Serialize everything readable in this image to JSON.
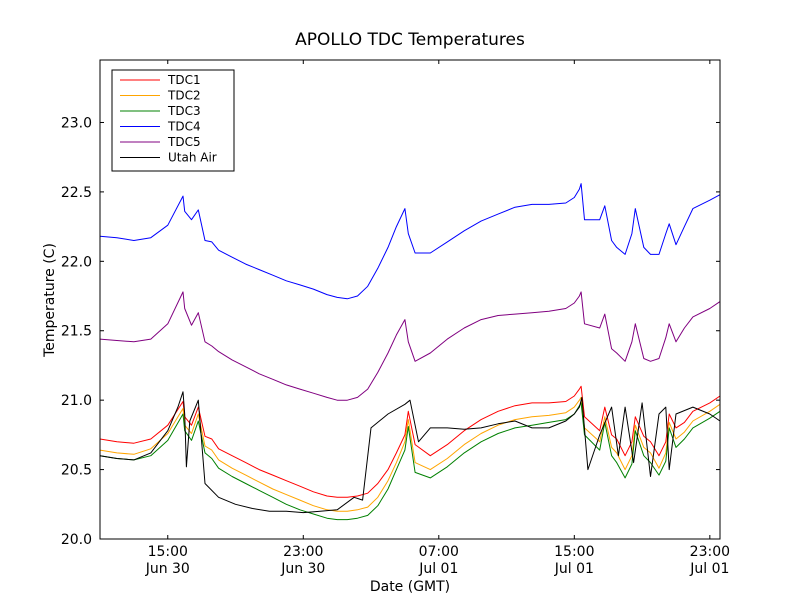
{
  "chart_data": {
    "type": "line",
    "title": "APOLLO TDC Temperatures",
    "xlabel": "Date (GMT)",
    "ylabel": "Temperature (C)",
    "xlim": [
      11.0,
      47.6
    ],
    "ylim": [
      20.0,
      23.45
    ],
    "grid": false,
    "legend_position": "top-left",
    "x_units": "hours since Jun 30 00:00 GMT",
    "x_ticks": [
      {
        "x": 15,
        "line1": "15:00",
        "line2": "Jun 30"
      },
      {
        "x": 23,
        "line1": "23:00",
        "line2": "Jun 30"
      },
      {
        "x": 31,
        "line1": "07:00",
        "line2": "Jul 01"
      },
      {
        "x": 39,
        "line1": "15:00",
        "line2": "Jul 01"
      },
      {
        "x": 47,
        "line1": "23:00",
        "line2": "Jul 01"
      }
    ],
    "y_ticks": [
      {
        "value": 20.0,
        "label": "20.0"
      },
      {
        "value": 20.5,
        "label": "20.5"
      },
      {
        "value": 21.0,
        "label": "21.0"
      },
      {
        "value": 21.5,
        "label": "21.5"
      },
      {
        "value": 22.0,
        "label": "22.0"
      },
      {
        "value": 22.5,
        "label": "22.5"
      },
      {
        "value": 23.0,
        "label": "23.0"
      }
    ],
    "series": [
      {
        "name": "TDC1",
        "color": "#ff0000",
        "x": [
          11.0,
          12.0,
          13.0,
          14.0,
          15.0,
          15.9,
          16.0,
          16.4,
          16.8,
          17.2,
          17.6,
          18.0,
          18.8,
          19.6,
          20.4,
          21.2,
          22.0,
          22.8,
          23.6,
          24.4,
          25.0,
          25.6,
          26.2,
          26.8,
          27.4,
          28.0,
          28.5,
          29.0,
          29.2,
          29.6,
          30.5,
          31.5,
          32.5,
          33.5,
          34.5,
          35.5,
          36.5,
          37.5,
          38.5,
          39.0,
          39.3,
          39.4,
          39.6,
          40.5,
          40.8,
          41.2,
          41.5,
          42.0,
          42.4,
          42.6,
          43.1,
          43.5,
          44.0,
          44.4,
          44.6,
          45.0,
          45.5,
          46.0,
          47.0,
          47.6
        ],
        "y": [
          20.72,
          20.7,
          20.69,
          20.72,
          20.82,
          20.99,
          20.88,
          20.82,
          20.95,
          20.74,
          20.72,
          20.65,
          20.6,
          20.55,
          20.5,
          20.46,
          20.42,
          20.38,
          20.34,
          20.31,
          20.3,
          20.3,
          20.31,
          20.33,
          20.4,
          20.5,
          20.62,
          20.75,
          20.92,
          20.68,
          20.6,
          20.68,
          20.78,
          20.86,
          20.92,
          20.96,
          20.98,
          20.98,
          20.99,
          21.03,
          21.08,
          21.1,
          20.88,
          20.78,
          20.95,
          20.75,
          20.72,
          20.6,
          20.7,
          20.88,
          20.74,
          20.7,
          20.6,
          20.7,
          20.9,
          20.8,
          20.84,
          20.92,
          20.98,
          21.03
        ]
      },
      {
        "name": "TDC2",
        "color": "#ffa500",
        "x": [
          11.0,
          12.0,
          13.0,
          14.0,
          15.0,
          15.9,
          16.0,
          16.4,
          16.8,
          17.2,
          17.6,
          18.0,
          18.8,
          19.6,
          20.4,
          21.2,
          22.0,
          22.8,
          23.6,
          24.4,
          25.0,
          25.6,
          26.2,
          26.8,
          27.4,
          28.0,
          28.5,
          29.0,
          29.2,
          29.6,
          30.5,
          31.5,
          32.5,
          33.5,
          34.5,
          35.5,
          36.5,
          37.5,
          38.5,
          39.0,
          39.3,
          39.4,
          39.6,
          40.5,
          40.8,
          41.2,
          41.5,
          42.0,
          42.4,
          42.6,
          43.1,
          43.5,
          44.0,
          44.4,
          44.6,
          45.0,
          45.5,
          46.0,
          47.0,
          47.6
        ],
        "y": [
          20.64,
          20.62,
          20.61,
          20.65,
          20.76,
          20.94,
          20.82,
          20.76,
          20.9,
          20.67,
          20.64,
          20.57,
          20.51,
          20.46,
          20.41,
          20.36,
          20.32,
          20.28,
          20.24,
          20.21,
          20.2,
          20.2,
          20.21,
          20.23,
          20.3,
          20.42,
          20.55,
          20.7,
          20.86,
          20.55,
          20.5,
          20.58,
          20.68,
          20.76,
          20.82,
          20.86,
          20.88,
          20.89,
          20.91,
          20.95,
          21.0,
          21.02,
          20.8,
          20.7,
          20.88,
          20.66,
          20.62,
          20.5,
          20.6,
          20.82,
          20.66,
          20.62,
          20.51,
          20.62,
          20.84,
          20.72,
          20.77,
          20.85,
          20.92,
          20.97
        ]
      },
      {
        "name": "TDC3",
        "color": "#008000",
        "x": [
          11.0,
          12.0,
          13.0,
          14.0,
          15.0,
          15.9,
          16.0,
          16.4,
          16.8,
          17.2,
          17.6,
          18.0,
          18.8,
          19.6,
          20.4,
          21.2,
          22.0,
          22.8,
          23.6,
          24.4,
          25.0,
          25.6,
          26.2,
          26.8,
          27.4,
          28.0,
          28.5,
          29.0,
          29.2,
          29.6,
          30.5,
          31.5,
          32.5,
          33.5,
          34.5,
          35.5,
          36.5,
          37.5,
          38.5,
          39.0,
          39.3,
          39.4,
          39.6,
          40.5,
          40.8,
          41.2,
          41.5,
          42.0,
          42.4,
          42.6,
          43.1,
          43.5,
          44.0,
          44.4,
          44.6,
          45.0,
          45.5,
          46.0,
          47.0,
          47.6
        ],
        "y": [
          20.6,
          20.58,
          20.57,
          20.6,
          20.71,
          20.9,
          20.78,
          20.71,
          20.85,
          20.62,
          20.58,
          20.51,
          20.45,
          20.4,
          20.35,
          20.3,
          20.25,
          20.21,
          20.18,
          20.15,
          20.14,
          20.14,
          20.15,
          20.17,
          20.24,
          20.36,
          20.5,
          20.64,
          20.81,
          20.48,
          20.44,
          20.52,
          20.62,
          20.7,
          20.76,
          20.8,
          20.82,
          20.84,
          20.86,
          20.9,
          20.96,
          20.98,
          20.75,
          20.64,
          20.84,
          20.6,
          20.55,
          20.44,
          20.54,
          20.78,
          20.6,
          20.55,
          20.46,
          20.56,
          20.8,
          20.66,
          20.72,
          20.8,
          20.87,
          20.92
        ]
      },
      {
        "name": "TDC4",
        "color": "#0000ff",
        "x": [
          11.0,
          12.0,
          13.0,
          14.0,
          15.0,
          15.9,
          16.0,
          16.4,
          16.8,
          17.2,
          17.6,
          18.0,
          18.8,
          19.6,
          20.4,
          21.2,
          22.0,
          22.8,
          23.6,
          24.4,
          25.0,
          25.6,
          26.2,
          26.8,
          27.4,
          28.0,
          28.5,
          29.0,
          29.2,
          29.6,
          30.5,
          31.5,
          32.5,
          33.5,
          34.5,
          35.5,
          36.5,
          37.5,
          38.5,
          39.0,
          39.3,
          39.4,
          39.6,
          40.5,
          40.8,
          41.2,
          41.5,
          42.0,
          42.4,
          42.6,
          43.1,
          43.5,
          44.0,
          44.4,
          44.6,
          45.0,
          45.5,
          46.0,
          47.0,
          47.6
        ],
        "y": [
          22.18,
          22.17,
          22.15,
          22.17,
          22.26,
          22.47,
          22.36,
          22.3,
          22.37,
          22.15,
          22.14,
          22.08,
          22.03,
          21.98,
          21.94,
          21.9,
          21.86,
          21.83,
          21.8,
          21.76,
          21.74,
          21.73,
          21.75,
          21.82,
          21.95,
          22.1,
          22.25,
          22.38,
          22.2,
          22.06,
          22.06,
          22.14,
          22.22,
          22.29,
          22.34,
          22.39,
          22.41,
          22.41,
          22.42,
          22.46,
          22.52,
          22.56,
          22.3,
          22.3,
          22.4,
          22.15,
          22.1,
          22.05,
          22.2,
          22.38,
          22.1,
          22.05,
          22.05,
          22.2,
          22.27,
          22.12,
          22.25,
          22.38,
          22.44,
          22.48
        ]
      },
      {
        "name": "TDC5",
        "color": "#800080",
        "x": [
          11.0,
          12.0,
          13.0,
          14.0,
          15.0,
          15.9,
          16.0,
          16.4,
          16.8,
          17.2,
          17.6,
          18.0,
          18.8,
          19.6,
          20.4,
          21.2,
          22.0,
          22.8,
          23.6,
          24.4,
          25.0,
          25.6,
          26.2,
          26.8,
          27.4,
          28.0,
          28.5,
          29.0,
          29.2,
          29.6,
          30.5,
          31.5,
          32.5,
          33.5,
          34.5,
          35.5,
          36.5,
          37.5,
          38.5,
          39.0,
          39.3,
          39.4,
          39.6,
          40.5,
          40.8,
          41.2,
          41.5,
          42.0,
          42.4,
          42.6,
          43.1,
          43.5,
          44.0,
          44.4,
          44.6,
          45.0,
          45.5,
          46.0,
          47.0,
          47.6
        ],
        "y": [
          21.44,
          21.43,
          21.42,
          21.44,
          21.55,
          21.78,
          21.66,
          21.54,
          21.63,
          21.42,
          21.39,
          21.35,
          21.29,
          21.24,
          21.19,
          21.15,
          21.11,
          21.08,
          21.05,
          21.02,
          21.0,
          21.0,
          21.02,
          21.08,
          21.2,
          21.34,
          21.47,
          21.58,
          21.42,
          21.28,
          21.34,
          21.44,
          21.52,
          21.58,
          21.61,
          21.62,
          21.63,
          21.64,
          21.66,
          21.7,
          21.75,
          21.78,
          21.55,
          21.52,
          21.62,
          21.37,
          21.34,
          21.28,
          21.42,
          21.55,
          21.3,
          21.28,
          21.3,
          21.45,
          21.55,
          21.42,
          21.52,
          21.6,
          21.66,
          21.71
        ]
      },
      {
        "name": "Utah Air",
        "color": "#000000",
        "x": [
          11.0,
          12.0,
          13.0,
          14.0,
          15.0,
          15.6,
          15.9,
          16.0,
          16.1,
          16.3,
          16.8,
          17.2,
          18.0,
          19.0,
          20.0,
          21.0,
          21.6,
          22.0,
          23.0,
          24.0,
          25.0,
          26.0,
          26.5,
          27.0,
          28.0,
          29.0,
          29.3,
          29.8,
          30.5,
          31.5,
          32.5,
          33.5,
          34.5,
          35.5,
          36.5,
          37.5,
          38.5,
          39.0,
          39.3,
          39.45,
          39.8,
          40.5,
          41.2,
          41.6,
          42.0,
          42.5,
          43.0,
          43.5,
          44.0,
          44.4,
          44.6,
          45.0,
          46.0,
          47.0,
          47.6
        ],
        "y": [
          20.6,
          20.58,
          20.57,
          20.62,
          20.78,
          20.95,
          21.06,
          20.9,
          20.52,
          20.85,
          21.0,
          20.4,
          20.3,
          20.25,
          20.22,
          20.2,
          20.2,
          20.2,
          20.19,
          20.2,
          20.21,
          20.3,
          20.28,
          20.8,
          20.9,
          20.97,
          21.0,
          20.7,
          20.8,
          20.8,
          20.79,
          20.8,
          20.83,
          20.85,
          20.8,
          20.8,
          20.85,
          20.9,
          20.95,
          21.02,
          20.5,
          20.75,
          20.95,
          20.6,
          20.95,
          20.55,
          20.98,
          20.45,
          20.9,
          20.95,
          20.5,
          20.9,
          20.95,
          20.9,
          20.85
        ]
      }
    ]
  }
}
